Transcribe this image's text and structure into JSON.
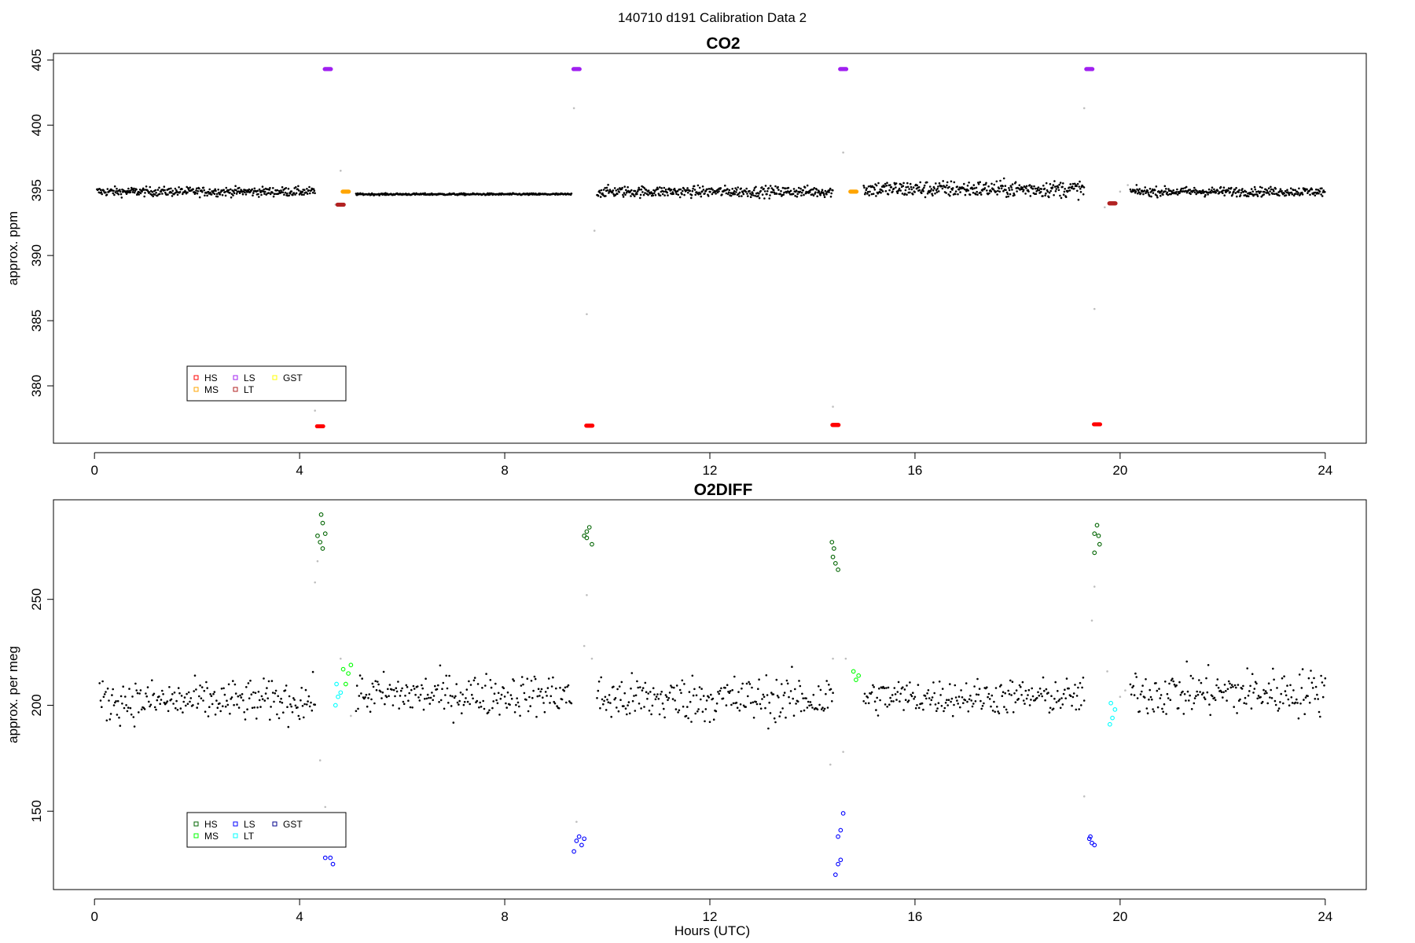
{
  "page": {
    "super_title": "140710   d191   Calibration Data 2",
    "x_axis_label": "Hours (UTC)"
  },
  "chart_data": [
    {
      "type": "scatter",
      "title": "CO2",
      "xlabel": "",
      "ylabel": "approx. ppm",
      "xlim": [
        -0.8,
        24.8
      ],
      "ylim": [
        375.6,
        405.5
      ],
      "x_ticks": [
        0,
        4,
        8,
        12,
        16,
        20,
        24
      ],
      "x_tick_labels": [
        "0",
        "4",
        "8",
        "12",
        "16",
        "20",
        "24"
      ],
      "y_ticks": [
        380,
        385,
        390,
        395,
        400,
        405
      ],
      "y_tick_labels": [
        "380",
        "385",
        "390",
        "395",
        "400",
        "405"
      ],
      "grid": false,
      "legend": {
        "placement": "bottom-left",
        "entries": [
          {
            "label": "HS",
            "color": "#ff0000"
          },
          {
            "label": "MS",
            "color": "#ffa500"
          },
          {
            "label": "LS",
            "color": "#a020f0"
          },
          {
            "label": "LT",
            "color": "#b22222"
          },
          {
            "label": "GST",
            "color": "#ffff00"
          }
        ]
      },
      "ambient": {
        "color": "#000000",
        "segments": [
          {
            "start": 0.05,
            "end": 4.3,
            "base": 394.9,
            "noise": 0.25
          },
          {
            "start": 5.1,
            "end": 9.3,
            "base": 394.7,
            "noise": 0.05
          },
          {
            "start": 9.8,
            "end": 14.4,
            "base": 394.9,
            "noise": 0.3
          },
          {
            "start": 15.0,
            "end": 19.3,
            "base": 395.1,
            "noise": 0.45
          },
          {
            "start": 20.2,
            "end": 24.0,
            "base": 394.9,
            "noise": 0.25
          }
        ]
      },
      "calibration_runs": [
        {
          "name": "HS",
          "color": "#ff0000",
          "points": [
            [
              4.4,
              376.9
            ],
            [
              9.65,
              376.95
            ],
            [
              14.45,
              377.0
            ],
            [
              19.55,
              377.05
            ]
          ]
        },
        {
          "name": "LS",
          "color": "#a020f0",
          "points": [
            [
              4.55,
              404.3
            ],
            [
              9.4,
              404.3
            ],
            [
              14.6,
              404.3
            ],
            [
              19.4,
              404.3
            ]
          ]
        },
        {
          "name": "MS",
          "color": "#ffa500",
          "points": [
            [
              4.9,
              394.9
            ],
            [
              14.8,
              394.9
            ]
          ]
        },
        {
          "name": "LT",
          "color": "#b22222",
          "points": [
            [
              4.8,
              393.9
            ],
            [
              19.85,
              394.0
            ]
          ]
        }
      ],
      "transition_points": {
        "color": "#bebebe",
        "points": [
          [
            4.3,
            378.1
          ],
          [
            4.7,
            393.9
          ],
          [
            4.8,
            396.5
          ],
          [
            9.35,
            401.3
          ],
          [
            9.6,
            385.5
          ],
          [
            9.75,
            391.9
          ],
          [
            14.4,
            378.4
          ],
          [
            14.6,
            397.9
          ],
          [
            19.3,
            401.3
          ],
          [
            19.5,
            385.9
          ],
          [
            19.7,
            393.7
          ],
          [
            20.0,
            394.9
          ],
          [
            20.15,
            395.4
          ]
        ]
      }
    },
    {
      "type": "scatter",
      "title": "O2DIFF",
      "xlabel": "Hours (UTC)",
      "ylabel": "approx. per meg",
      "xlim": [
        -0.8,
        24.8
      ],
      "ylim": [
        113,
        297
      ],
      "x_ticks": [
        0,
        4,
        8,
        12,
        16,
        20,
        24
      ],
      "x_tick_labels": [
        "0",
        "4",
        "8",
        "12",
        "16",
        "20",
        "24"
      ],
      "y_ticks": [
        150,
        200,
        250
      ],
      "y_tick_labels": [
        "150",
        "200",
        "250"
      ],
      "grid": false,
      "legend": {
        "placement": "bottom-left",
        "entries": [
          {
            "label": "HS",
            "color": "#006400"
          },
          {
            "label": "MS",
            "color": "#00ff00"
          },
          {
            "label": "LS",
            "color": "#0000ff"
          },
          {
            "label": "LT",
            "color": "#00ffff"
          },
          {
            "label": "GST",
            "color": "#00008b"
          }
        ]
      },
      "ambient": {
        "color": "#000000",
        "segments": [
          {
            "start": 0.1,
            "end": 4.3,
            "base": 202,
            "noise": 7
          },
          {
            "start": 5.1,
            "end": 9.3,
            "base": 205,
            "noise": 7
          },
          {
            "start": 9.8,
            "end": 14.4,
            "base": 203,
            "noise": 8
          },
          {
            "start": 15.0,
            "end": 19.3,
            "base": 204,
            "noise": 6
          },
          {
            "start": 20.2,
            "end": 24.0,
            "base": 206,
            "noise": 8
          }
        ]
      },
      "calibration_runs": [
        {
          "name": "HS",
          "color": "#006400",
          "points": [
            [
              4.35,
              280
            ],
            [
              4.4,
              277
            ],
            [
              4.45,
              274
            ],
            [
              4.5,
              281
            ],
            [
              4.45,
              286
            ],
            [
              4.42,
              290
            ],
            [
              9.55,
              280
            ],
            [
              9.6,
              282
            ],
            [
              9.65,
              284
            ],
            [
              9.7,
              276
            ],
            [
              9.6,
              279
            ],
            [
              14.4,
              270
            ],
            [
              14.45,
              267
            ],
            [
              14.5,
              264
            ],
            [
              14.42,
              274
            ],
            [
              14.38,
              277
            ],
            [
              19.5,
              281
            ],
            [
              19.55,
              285
            ],
            [
              19.6,
              276
            ],
            [
              19.5,
              272
            ],
            [
              19.58,
              280
            ]
          ]
        },
        {
          "name": "LS",
          "color": "#0000ff",
          "points": [
            [
              4.5,
              128
            ],
            [
              4.6,
              128
            ],
            [
              4.65,
              125
            ],
            [
              9.4,
              136
            ],
            [
              9.45,
              138
            ],
            [
              9.5,
              134
            ],
            [
              9.55,
              137
            ],
            [
              9.35,
              131
            ],
            [
              14.5,
              138
            ],
            [
              14.55,
              141
            ],
            [
              14.6,
              149
            ],
            [
              14.5,
              125
            ],
            [
              14.55,
              127
            ],
            [
              14.45,
              120
            ],
            [
              19.4,
              137
            ],
            [
              19.45,
              135
            ],
            [
              19.5,
              134
            ],
            [
              19.42,
              138
            ]
          ]
        },
        {
          "name": "MS",
          "color": "#00ff00",
          "points": [
            [
              4.9,
              210
            ],
            [
              4.95,
              215
            ],
            [
              5.0,
              219
            ],
            [
              4.85,
              217
            ],
            [
              14.8,
              216
            ],
            [
              14.85,
              212
            ],
            [
              14.9,
              214
            ]
          ]
        },
        {
          "name": "LT",
          "color": "#00ffff",
          "points": [
            [
              4.7,
              200
            ],
            [
              4.75,
              204
            ],
            [
              4.8,
              206
            ],
            [
              4.72,
              210
            ],
            [
              19.8,
              191
            ],
            [
              19.85,
              194
            ],
            [
              19.9,
              198
            ],
            [
              19.82,
              201
            ]
          ]
        }
      ],
      "transition_points": {
        "color": "#bebebe",
        "points": [
          [
            4.3,
            258
          ],
          [
            4.35,
            268
          ],
          [
            4.4,
            174
          ],
          [
            4.5,
            152
          ],
          [
            4.8,
            222
          ],
          [
            5.0,
            195
          ],
          [
            9.4,
            145
          ],
          [
            9.55,
            228
          ],
          [
            9.6,
            252
          ],
          [
            9.7,
            222
          ],
          [
            14.35,
            172
          ],
          [
            14.4,
            222
          ],
          [
            14.6,
            178
          ],
          [
            14.65,
            222
          ],
          [
            19.3,
            157
          ],
          [
            19.45,
            240
          ],
          [
            19.5,
            256
          ],
          [
            19.75,
            216
          ],
          [
            20.0,
            204
          ],
          [
            20.1,
            207
          ]
        ]
      }
    }
  ]
}
